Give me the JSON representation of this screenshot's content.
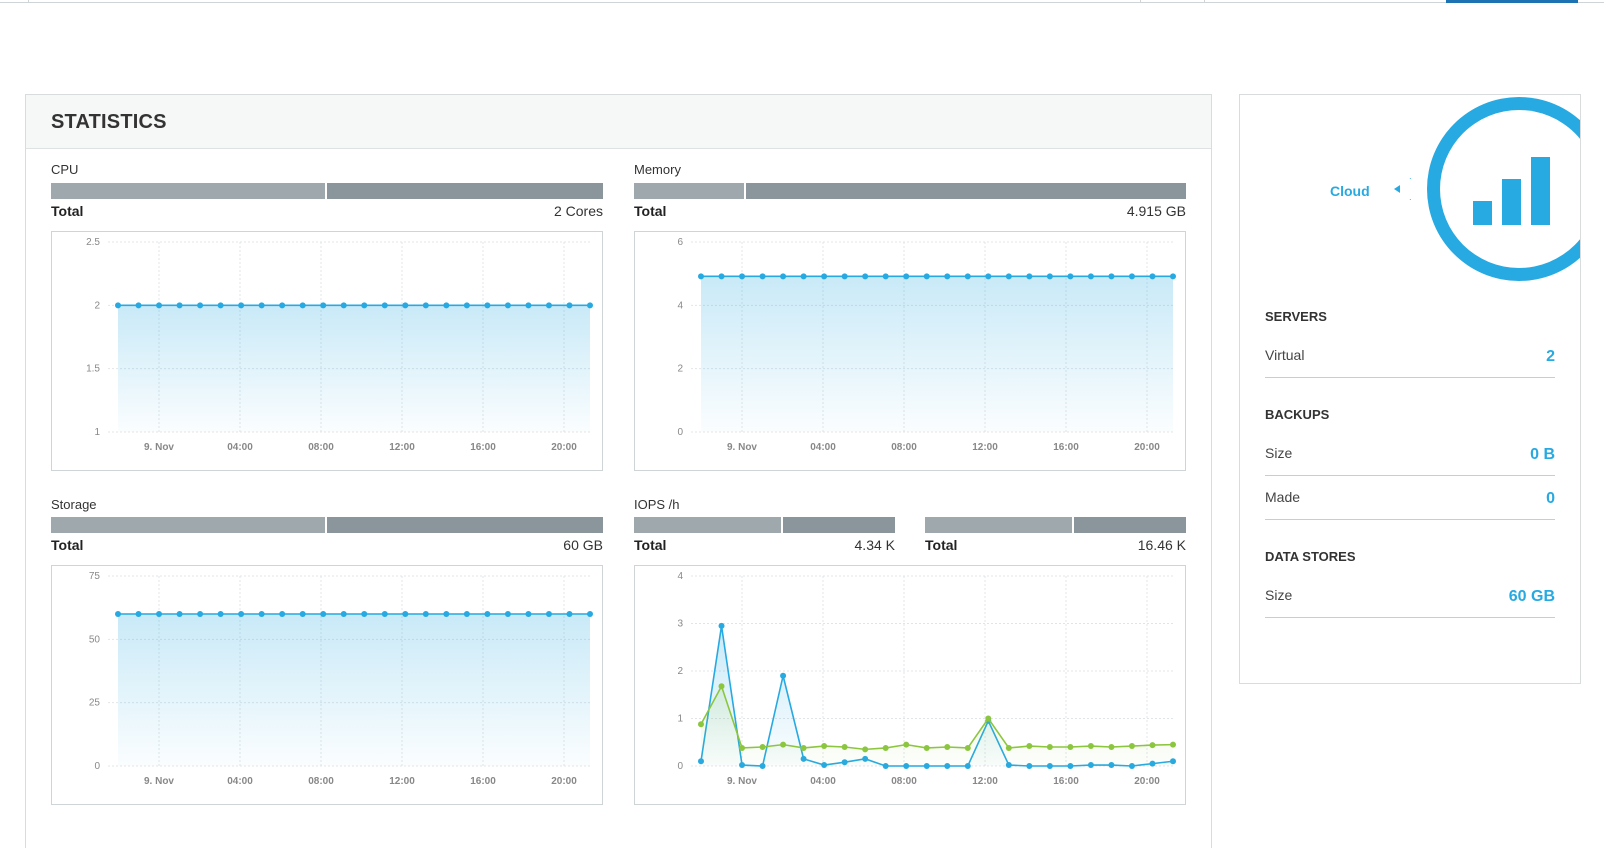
{
  "stats": {
    "title": "STATISTICS",
    "cpu": {
      "label": "CPU",
      "total_label": "Total",
      "total_value": "2 Cores",
      "bar_used_fraction": 0.5
    },
    "memory": {
      "label": "Memory",
      "total_label": "Total",
      "total_value": "4.915 GB",
      "bar_used_fraction": 0.2
    },
    "storage": {
      "label": "Storage",
      "total_label": "Total",
      "total_value": "60 GB",
      "bar_used_fraction": 0.5
    },
    "iops": {
      "label": "IOPS /h",
      "read": {
        "total_label": "Total",
        "total_value": "4.34 K",
        "bar_used_fraction": 0.57
      },
      "write": {
        "total_label": "Total",
        "total_value": "16.46 K",
        "bar_used_fraction": 0.57
      }
    }
  },
  "chart_data": [
    {
      "type": "area",
      "x_ticks": [
        "9. Nov",
        "04:00",
        "08:00",
        "12:00",
        "16:00",
        "20:00"
      ],
      "y_ticks": [
        "1",
        "1.5",
        "2",
        "2.5"
      ],
      "ylim": [
        1,
        2.5
      ],
      "series": [
        {
          "color": "#27a9e1",
          "values": [
            2,
            2,
            2,
            2,
            2,
            2,
            2,
            2,
            2,
            2,
            2,
            2,
            2,
            2,
            2,
            2,
            2,
            2,
            2,
            2,
            2,
            2,
            2,
            2
          ]
        }
      ],
      "grid": true
    },
    {
      "type": "area",
      "x_ticks": [
        "9. Nov",
        "04:00",
        "08:00",
        "12:00",
        "16:00",
        "20:00"
      ],
      "y_ticks": [
        "0",
        "2",
        "4",
        "6"
      ],
      "ylim": [
        0,
        6
      ],
      "series": [
        {
          "color": "#27a9e1",
          "values": [
            4.915,
            4.915,
            4.915,
            4.915,
            4.915,
            4.915,
            4.915,
            4.915,
            4.915,
            4.915,
            4.915,
            4.915,
            4.915,
            4.915,
            4.915,
            4.915,
            4.915,
            4.915,
            4.915,
            4.915,
            4.915,
            4.915,
            4.915,
            4.915
          ]
        }
      ],
      "grid": true
    },
    {
      "type": "area",
      "x_ticks": [
        "9. Nov",
        "04:00",
        "08:00",
        "12:00",
        "16:00",
        "20:00"
      ],
      "y_ticks": [
        "0",
        "25",
        "50",
        "75"
      ],
      "ylim": [
        0,
        75
      ],
      "series": [
        {
          "color": "#27a9e1",
          "values": [
            60,
            60,
            60,
            60,
            60,
            60,
            60,
            60,
            60,
            60,
            60,
            60,
            60,
            60,
            60,
            60,
            60,
            60,
            60,
            60,
            60,
            60,
            60,
            60
          ]
        }
      ],
      "grid": true
    },
    {
      "type": "area",
      "x_ticks": [
        "9. Nov",
        "04:00",
        "08:00",
        "12:00",
        "16:00",
        "20:00"
      ],
      "y_ticks": [
        "0",
        "1",
        "2",
        "3",
        "4"
      ],
      "ylim": [
        0,
        4
      ],
      "series": [
        {
          "color": "#27a9e1",
          "values": [
            0.1,
            2.95,
            0.02,
            0.0,
            1.9,
            0.15,
            0.02,
            0.08,
            0.15,
            0.0,
            0.0,
            0.0,
            0.0,
            0.0,
            0.95,
            0.02,
            0.0,
            0.0,
            0.0,
            0.02,
            0.02,
            0.0,
            0.05,
            0.1
          ]
        },
        {
          "color": "#8cc63f",
          "values": [
            0.88,
            1.68,
            0.38,
            0.4,
            0.45,
            0.38,
            0.42,
            0.4,
            0.35,
            0.38,
            0.45,
            0.38,
            0.4,
            0.38,
            1.0,
            0.38,
            0.42,
            0.4,
            0.4,
            0.42,
            0.4,
            0.42,
            0.44,
            0.45
          ]
        }
      ],
      "grid": true
    }
  ],
  "side": {
    "cloud_label": "Cloud",
    "servers": {
      "title": "SERVERS",
      "rows": [
        {
          "label": "Virtual",
          "value": "2"
        }
      ]
    },
    "backups": {
      "title": "BACKUPS",
      "rows": [
        {
          "label": "Size",
          "value": "0 B"
        },
        {
          "label": "Made",
          "value": "0"
        }
      ]
    },
    "data_stores": {
      "title": "DATA STORES",
      "rows": [
        {
          "label": "Size",
          "value": "60 GB"
        }
      ]
    },
    "icon": "signal-bars-icon",
    "accent_color": "#27a9e1"
  }
}
